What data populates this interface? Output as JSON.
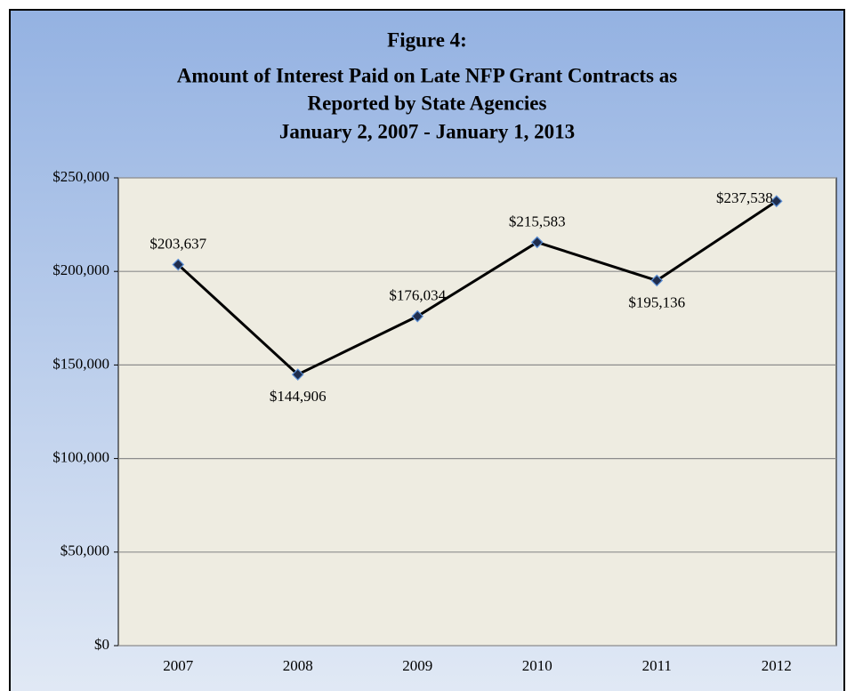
{
  "chart_data": {
    "type": "line",
    "title": [
      "Figure 4:",
      "Amount of Interest Paid on Late NFP Grant Contracts as",
      "Reported by State Agencies",
      "January 2, 2007 - January 1, 2013"
    ],
    "categories": [
      "2007",
      "2008",
      "2009",
      "2010",
      "2011",
      "2012"
    ],
    "series": [
      {
        "color": "#000000",
        "values": [
          203637,
          144906,
          176034,
          215583,
          195136,
          237538
        ],
        "value_labels": [
          "$203,637",
          "$144,906",
          "$176,034",
          "$215,583",
          "$195,136",
          "$237,538"
        ]
      }
    ],
    "ylim": [
      0,
      250000
    ],
    "yticks": [
      {
        "value": 0,
        "label": "$0"
      },
      {
        "value": 50000,
        "label": "$50,000"
      },
      {
        "value": 100000,
        "label": "$100,000"
      },
      {
        "value": 150000,
        "label": "$150,000"
      },
      {
        "value": 200000,
        "label": "$200,000"
      },
      {
        "value": 250000,
        "label": "$250,000"
      }
    ],
    "grid": true
  }
}
